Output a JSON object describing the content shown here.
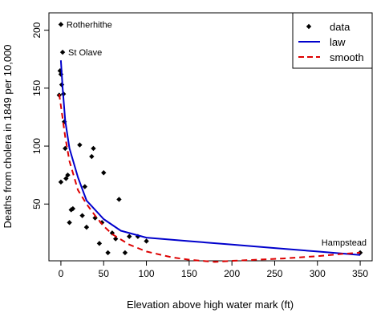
{
  "chart_data": {
    "type": "scatter",
    "xlabel": "Elevation above high water mark (ft)",
    "ylabel": "Deaths from cholera in 1849 per 10,000",
    "xlim": [
      -14,
      364
    ],
    "ylim": [
      1,
      215
    ],
    "x_ticks": [
      0,
      50,
      100,
      150,
      200,
      250,
      300,
      350
    ],
    "y_ticks": [
      50,
      100,
      150,
      200
    ],
    "grid": false,
    "legend": {
      "position": "top-right",
      "entries": [
        {
          "label": "data",
          "kind": "points",
          "color": "#000000"
        },
        {
          "label": "law",
          "kind": "line",
          "color": "#0000cc"
        },
        {
          "label": "smooth",
          "kind": "dashed",
          "color": "#dd0000"
        }
      ]
    },
    "series": [
      {
        "kind": "points",
        "color": "#000000",
        "x": [
          0,
          2,
          -1,
          0,
          1,
          3,
          4,
          -2,
          0,
          6,
          8,
          5,
          10,
          12,
          14,
          22,
          25,
          28,
          30,
          36,
          38,
          40,
          45,
          48,
          50,
          55,
          60,
          64,
          68,
          75,
          80,
          90,
          100,
          350
        ],
        "y": [
          205,
          181,
          165,
          162,
          153,
          145,
          121,
          144,
          69,
          72,
          75,
          98,
          34,
          45,
          46,
          101,
          40,
          65,
          30,
          91,
          98,
          38,
          16,
          34,
          77,
          8,
          25,
          20,
          54,
          8,
          22,
          22,
          18,
          8
        ]
      },
      {
        "kind": "line",
        "color": "#0000cc",
        "x": [
          0,
          2,
          5,
          10,
          20,
          30,
          50,
          70,
          100,
          150,
          200,
          250,
          300,
          350
        ],
        "y": [
          174,
          150,
          122,
          98,
          73,
          53,
          37,
          27,
          21,
          18,
          15,
          12,
          9,
          6
        ]
      },
      {
        "kind": "dashed",
        "color": "#dd0000",
        "x": [
          -2,
          2,
          5,
          10,
          20,
          30,
          40,
          50,
          60,
          80,
          100,
          130,
          150,
          180,
          200,
          230,
          260,
          300,
          330,
          350
        ],
        "y": [
          145,
          124,
          108,
          87,
          62,
          50,
          40,
          31,
          24,
          15,
          9,
          4,
          2,
          0,
          1,
          2,
          3,
          5,
          7,
          8
        ]
      }
    ],
    "annotations": [
      {
        "text": "Rotherhithe",
        "x": 0,
        "y": 205,
        "anchor": "start"
      },
      {
        "text": "St Olave",
        "x": 2,
        "y": 181,
        "anchor": "start"
      },
      {
        "text": "Hampstead",
        "x": 350,
        "y": 8,
        "anchor": "end"
      }
    ]
  }
}
